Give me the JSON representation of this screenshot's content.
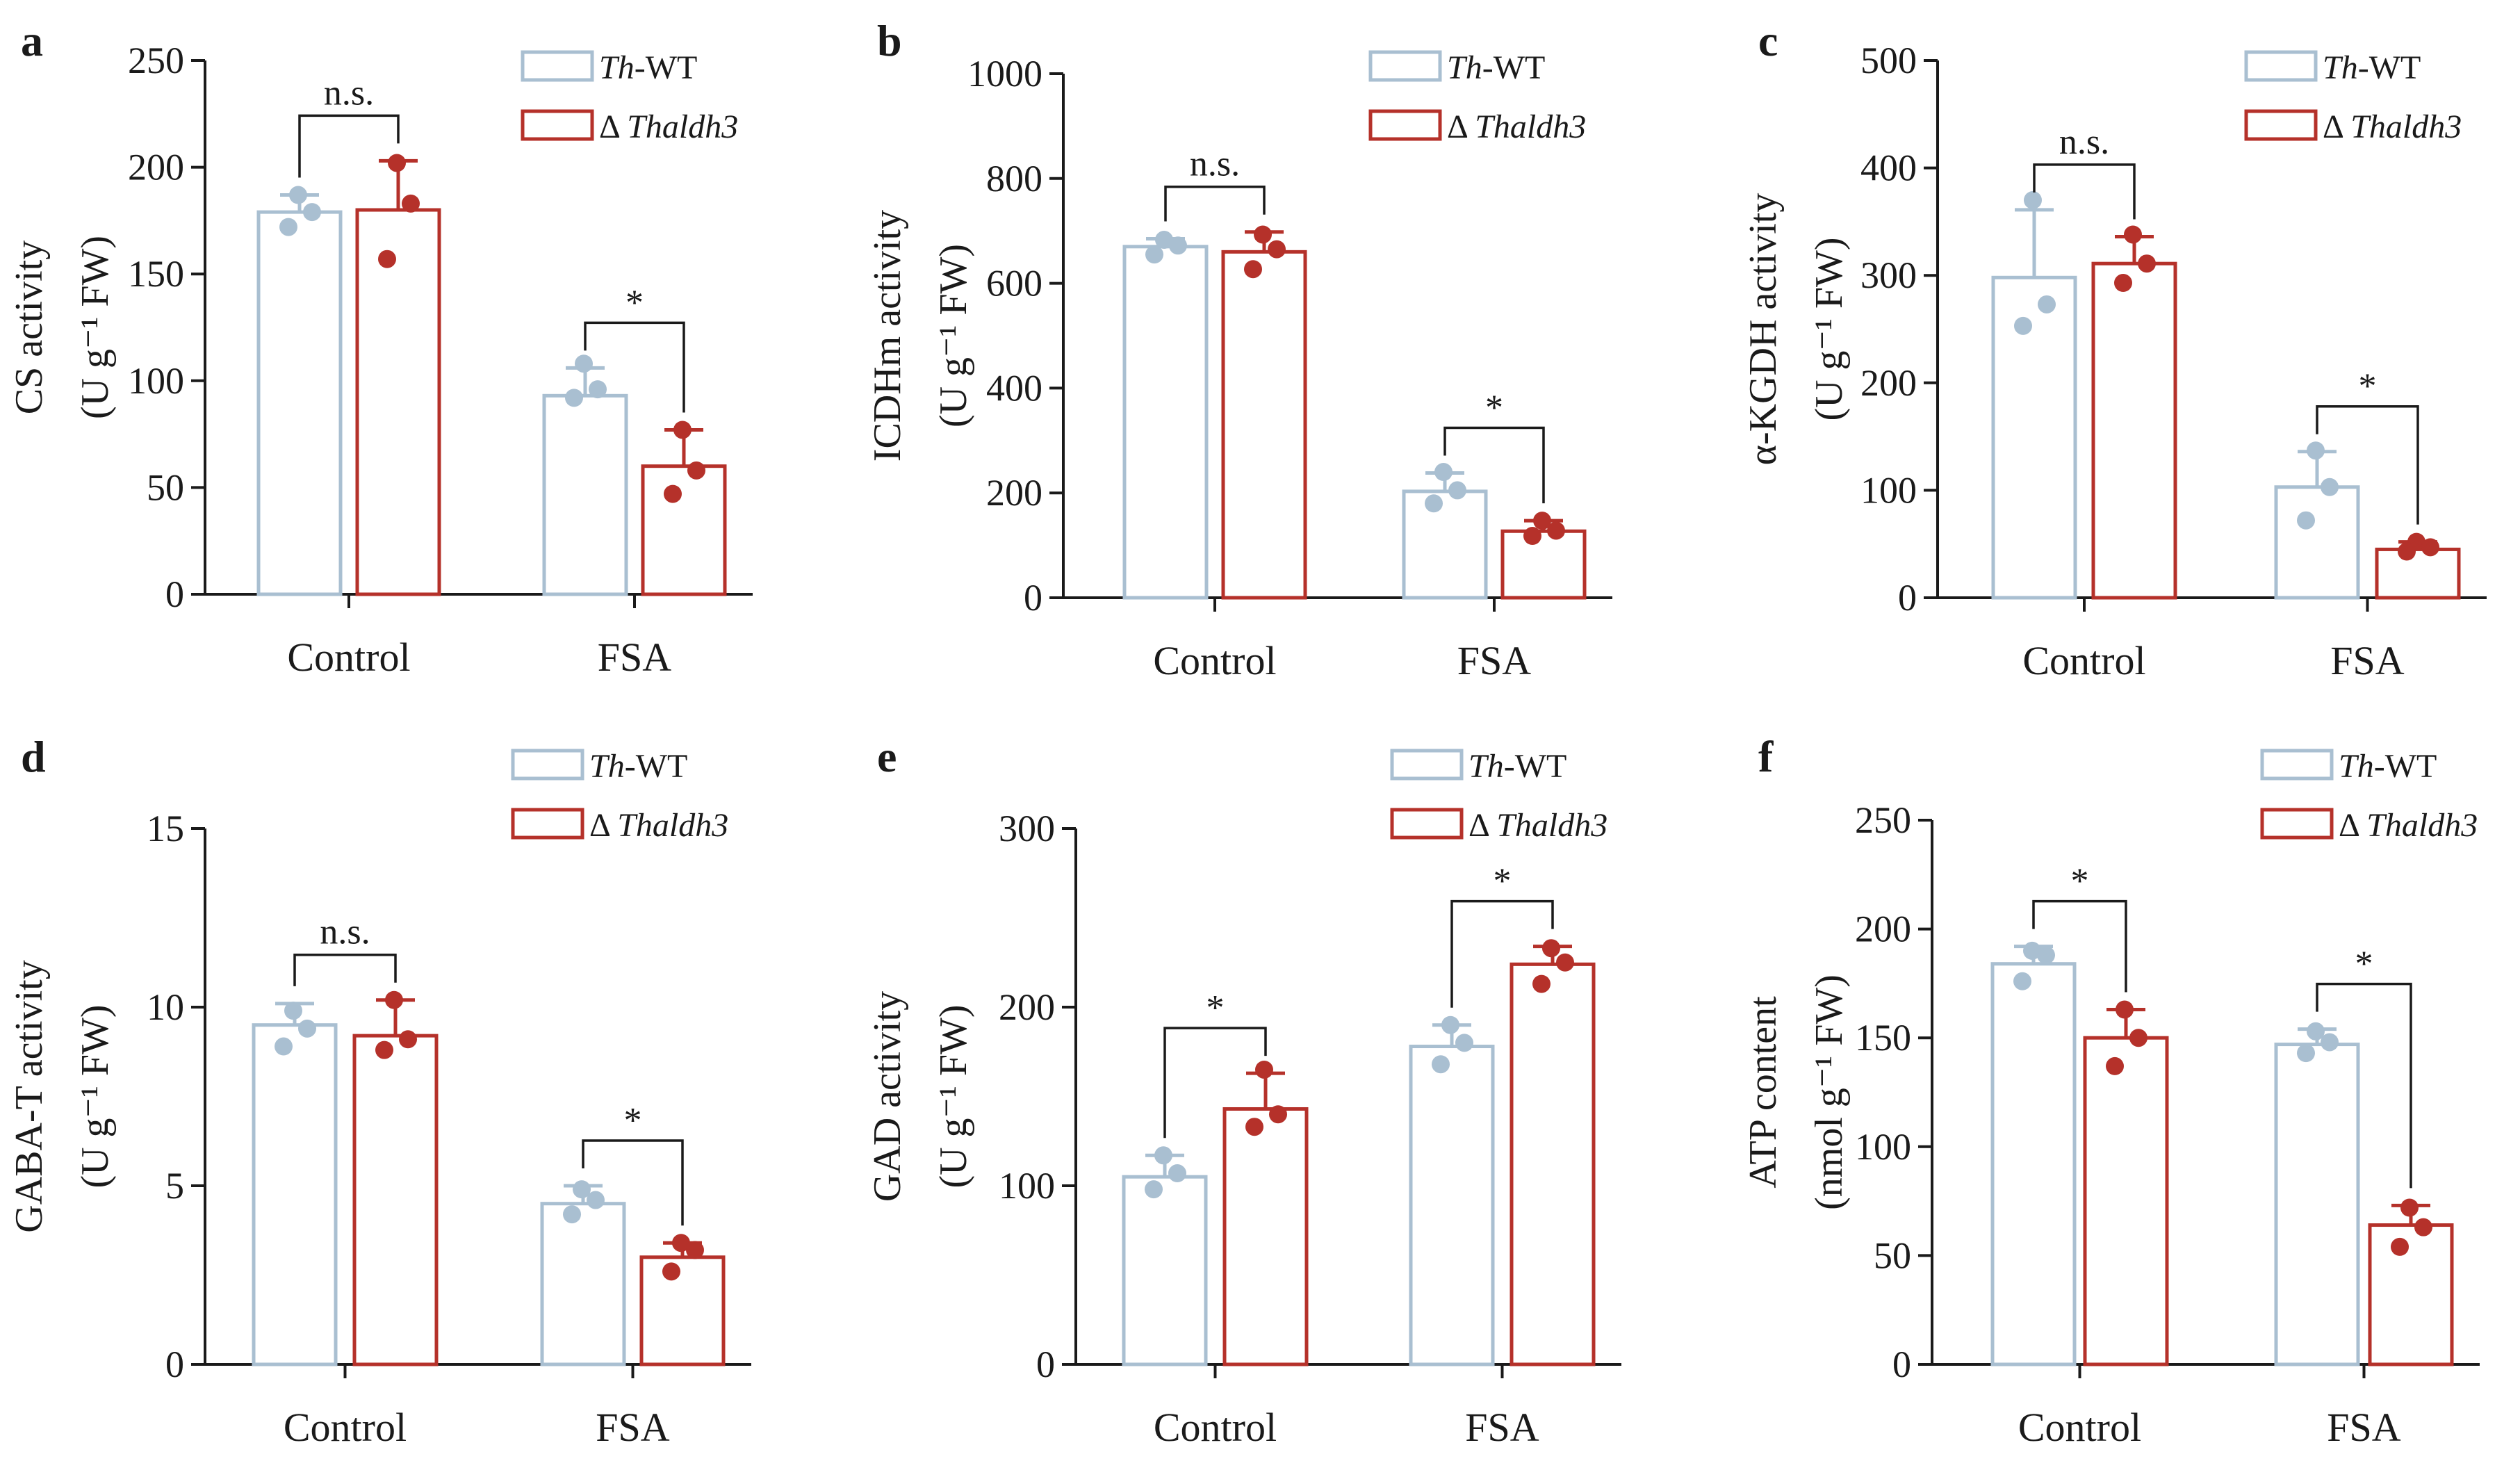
{
  "colors": {
    "wt": "#a9bfd1",
    "mut": "#b5312a",
    "axis": "#1a1a1a"
  },
  "legend": [
    {
      "italic": "Th",
      "rest": "-WT"
    },
    {
      "prefix": "Δ ",
      "italic": "Thaldh3"
    }
  ],
  "chart_data": [
    {
      "type": "bar",
      "letter": "a",
      "ylabel": [
        "CS activity",
        "(U g⁻¹ FW)"
      ],
      "ylim": [
        0,
        250
      ],
      "yticks": [
        0,
        50,
        100,
        150,
        200,
        250
      ],
      "categories": [
        "Control",
        "FSA"
      ],
      "series": [
        {
          "name": "Th-WT",
          "values": [
            179,
            93
          ],
          "err": [
            8,
            13
          ],
          "points": [
            [
              187,
              179,
              172
            ],
            [
              108,
              96,
              92
            ]
          ]
        },
        {
          "name": "Δ Thaldh3",
          "values": [
            180,
            60
          ],
          "err": [
            23,
            17
          ],
          "points": [
            [
              202,
              183,
              157
            ],
            [
              77,
              58,
              47
            ]
          ]
        }
      ],
      "significance": [
        "n.s.",
        "*"
      ]
    },
    {
      "type": "bar",
      "letter": "b",
      "ylabel": [
        "ICDHm activity",
        "(U g⁻¹ FW)"
      ],
      "ylim": [
        0,
        1000
      ],
      "yticks": [
        0,
        200,
        400,
        600,
        800,
        1000
      ],
      "categories": [
        "Control",
        "FSA"
      ],
      "series": [
        {
          "name": "Th-WT",
          "values": [
            670,
            203
          ],
          "err": [
            15,
            35
          ],
          "points": [
            [
              683,
              672,
              655
            ],
            [
              240,
              205,
              180
            ]
          ]
        },
        {
          "name": "Δ Thaldh3",
          "values": [
            660,
            127
          ],
          "err": [
            38,
            20
          ],
          "points": [
            [
              693,
              665,
              627
            ],
            [
              147,
              128,
              118
            ]
          ]
        }
      ],
      "significance": [
        "n.s.",
        "*"
      ]
    },
    {
      "type": "bar",
      "letter": "c",
      "ylabel": [
        "α-KGDH activity",
        "(U g⁻¹ FW)"
      ],
      "ylim": [
        0,
        500
      ],
      "yticks": [
        0,
        100,
        200,
        300,
        400,
        500
      ],
      "categories": [
        "Control",
        "FSA"
      ],
      "series": [
        {
          "name": "Th-WT",
          "values": [
            298,
            103
          ],
          "err": [
            63,
            33
          ],
          "points": [
            [
              370,
              273,
              253
            ],
            [
              137,
              103,
              72
            ]
          ]
        },
        {
          "name": "Δ Thaldh3",
          "values": [
            311,
            45
          ],
          "err": [
            25,
            7
          ],
          "points": [
            [
              338,
              311,
              293
            ],
            [
              52,
              47,
              43
            ]
          ]
        }
      ],
      "significance": [
        "n.s.",
        "*"
      ]
    },
    {
      "type": "bar",
      "letter": "d",
      "ylabel": [
        "GABA-T activity",
        "(U g⁻¹ FW)"
      ],
      "ylim": [
        0,
        15
      ],
      "yticks": [
        0,
        5,
        10,
        15
      ],
      "categories": [
        "Control",
        "FSA"
      ],
      "series": [
        {
          "name": "Th-WT",
          "values": [
            9.5,
            4.5
          ],
          "err": [
            0.6,
            0.5
          ],
          "points": [
            [
              9.9,
              9.4,
              8.9
            ],
            [
              4.9,
              4.6,
              4.2
            ]
          ]
        },
        {
          "name": "Δ Thaldh3",
          "values": [
            9.2,
            3.0
          ],
          "err": [
            1.0,
            0.4
          ],
          "points": [
            [
              10.2,
              9.1,
              8.8
            ],
            [
              3.4,
              3.2,
              2.6
            ]
          ]
        }
      ],
      "significance": [
        "n.s.",
        "*"
      ]
    },
    {
      "type": "bar",
      "letter": "e",
      "ylabel": [
        "GAD activity",
        "(U g⁻¹ FW)"
      ],
      "ylim": [
        0,
        300
      ],
      "yticks": [
        0,
        100,
        200,
        300
      ],
      "categories": [
        "Control",
        "FSA"
      ],
      "series": [
        {
          "name": "Th-WT",
          "values": [
            105,
            178
          ],
          "err": [
            12,
            12
          ],
          "points": [
            [
              117,
              107,
              98
            ],
            [
              190,
              180,
              168
            ]
          ]
        },
        {
          "name": "Δ Thaldh3",
          "values": [
            143,
            224
          ],
          "err": [
            20,
            10
          ],
          "points": [
            [
              165,
              140,
              133
            ],
            [
              233,
              225,
              213
            ]
          ]
        }
      ],
      "significance": [
        "*",
        "*"
      ]
    },
    {
      "type": "bar",
      "letter": "f",
      "ylabel": [
        "ATP content",
        "(nmol g⁻¹ FW)"
      ],
      "ylim": [
        0,
        250
      ],
      "yticks": [
        0,
        50,
        100,
        150,
        200,
        250
      ],
      "categories": [
        "Control",
        "FSA"
      ],
      "series": [
        {
          "name": "Th-WT",
          "values": [
            184,
            147
          ],
          "err": [
            8,
            7
          ],
          "points": [
            [
              190,
              188,
              176
            ],
            [
              153,
              148,
              143
            ]
          ]
        },
        {
          "name": "Δ Thaldh3",
          "values": [
            150,
            64
          ],
          "err": [
            13,
            9
          ],
          "points": [
            [
              163,
              150,
              137
            ],
            [
              72,
              63,
              54
            ]
          ]
        }
      ],
      "significance": [
        "*",
        "*"
      ]
    }
  ]
}
